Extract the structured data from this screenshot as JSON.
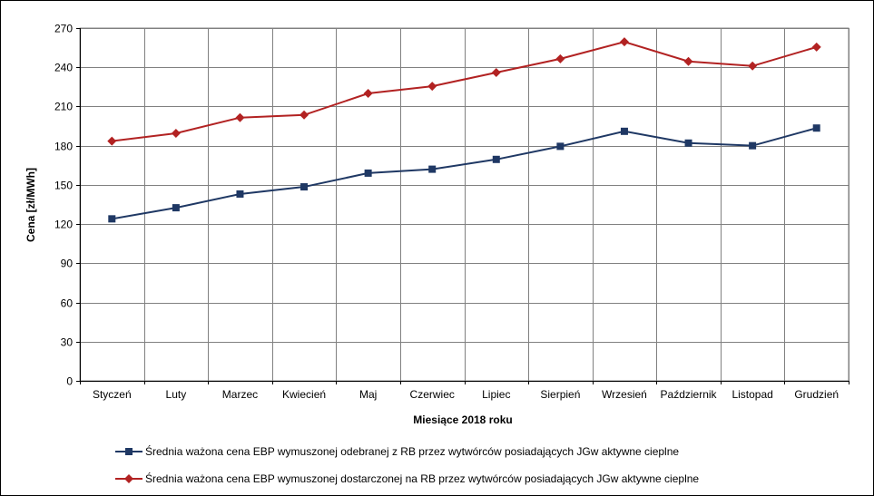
{
  "chart_data": {
    "type": "line",
    "title": "",
    "xlabel": "Miesiące 2018  roku",
    "ylabel": "Cena [zł/MWh]",
    "ylim": [
      0,
      270
    ],
    "yticks": [
      0,
      30,
      60,
      90,
      120,
      150,
      180,
      210,
      240,
      270
    ],
    "grid": true,
    "legend": "bottom",
    "categories": [
      "Styczeń",
      "Luty",
      "Marzec",
      "Kwiecień",
      "Maj",
      "Czerwiec",
      "Lipiec",
      "Sierpień",
      "Wrzesień",
      "Październik",
      "Listopad",
      "Grudzień"
    ],
    "series": [
      {
        "name": "Średnia ważona cena EBP wymuszonej odebranej z RB przez wytwórców posiadających JGw aktywne cieplne",
        "values": [
          124,
          132.5,
          143,
          148.5,
          159,
          162,
          169.5,
          179.5,
          191,
          182,
          180,
          193.5
        ],
        "color": "#1f3864",
        "marker": "square"
      },
      {
        "name": "Średnia ważona cena EBP wymuszonej dostarczonej na RB przez wytwórców posiadających JGw aktywne cieplne",
        "values": [
          183.5,
          189.5,
          201.5,
          203.5,
          220,
          225.5,
          236,
          246.5,
          259.5,
          244.5,
          241,
          255.5
        ],
        "color": "#b22222",
        "marker": "diamond"
      }
    ]
  }
}
